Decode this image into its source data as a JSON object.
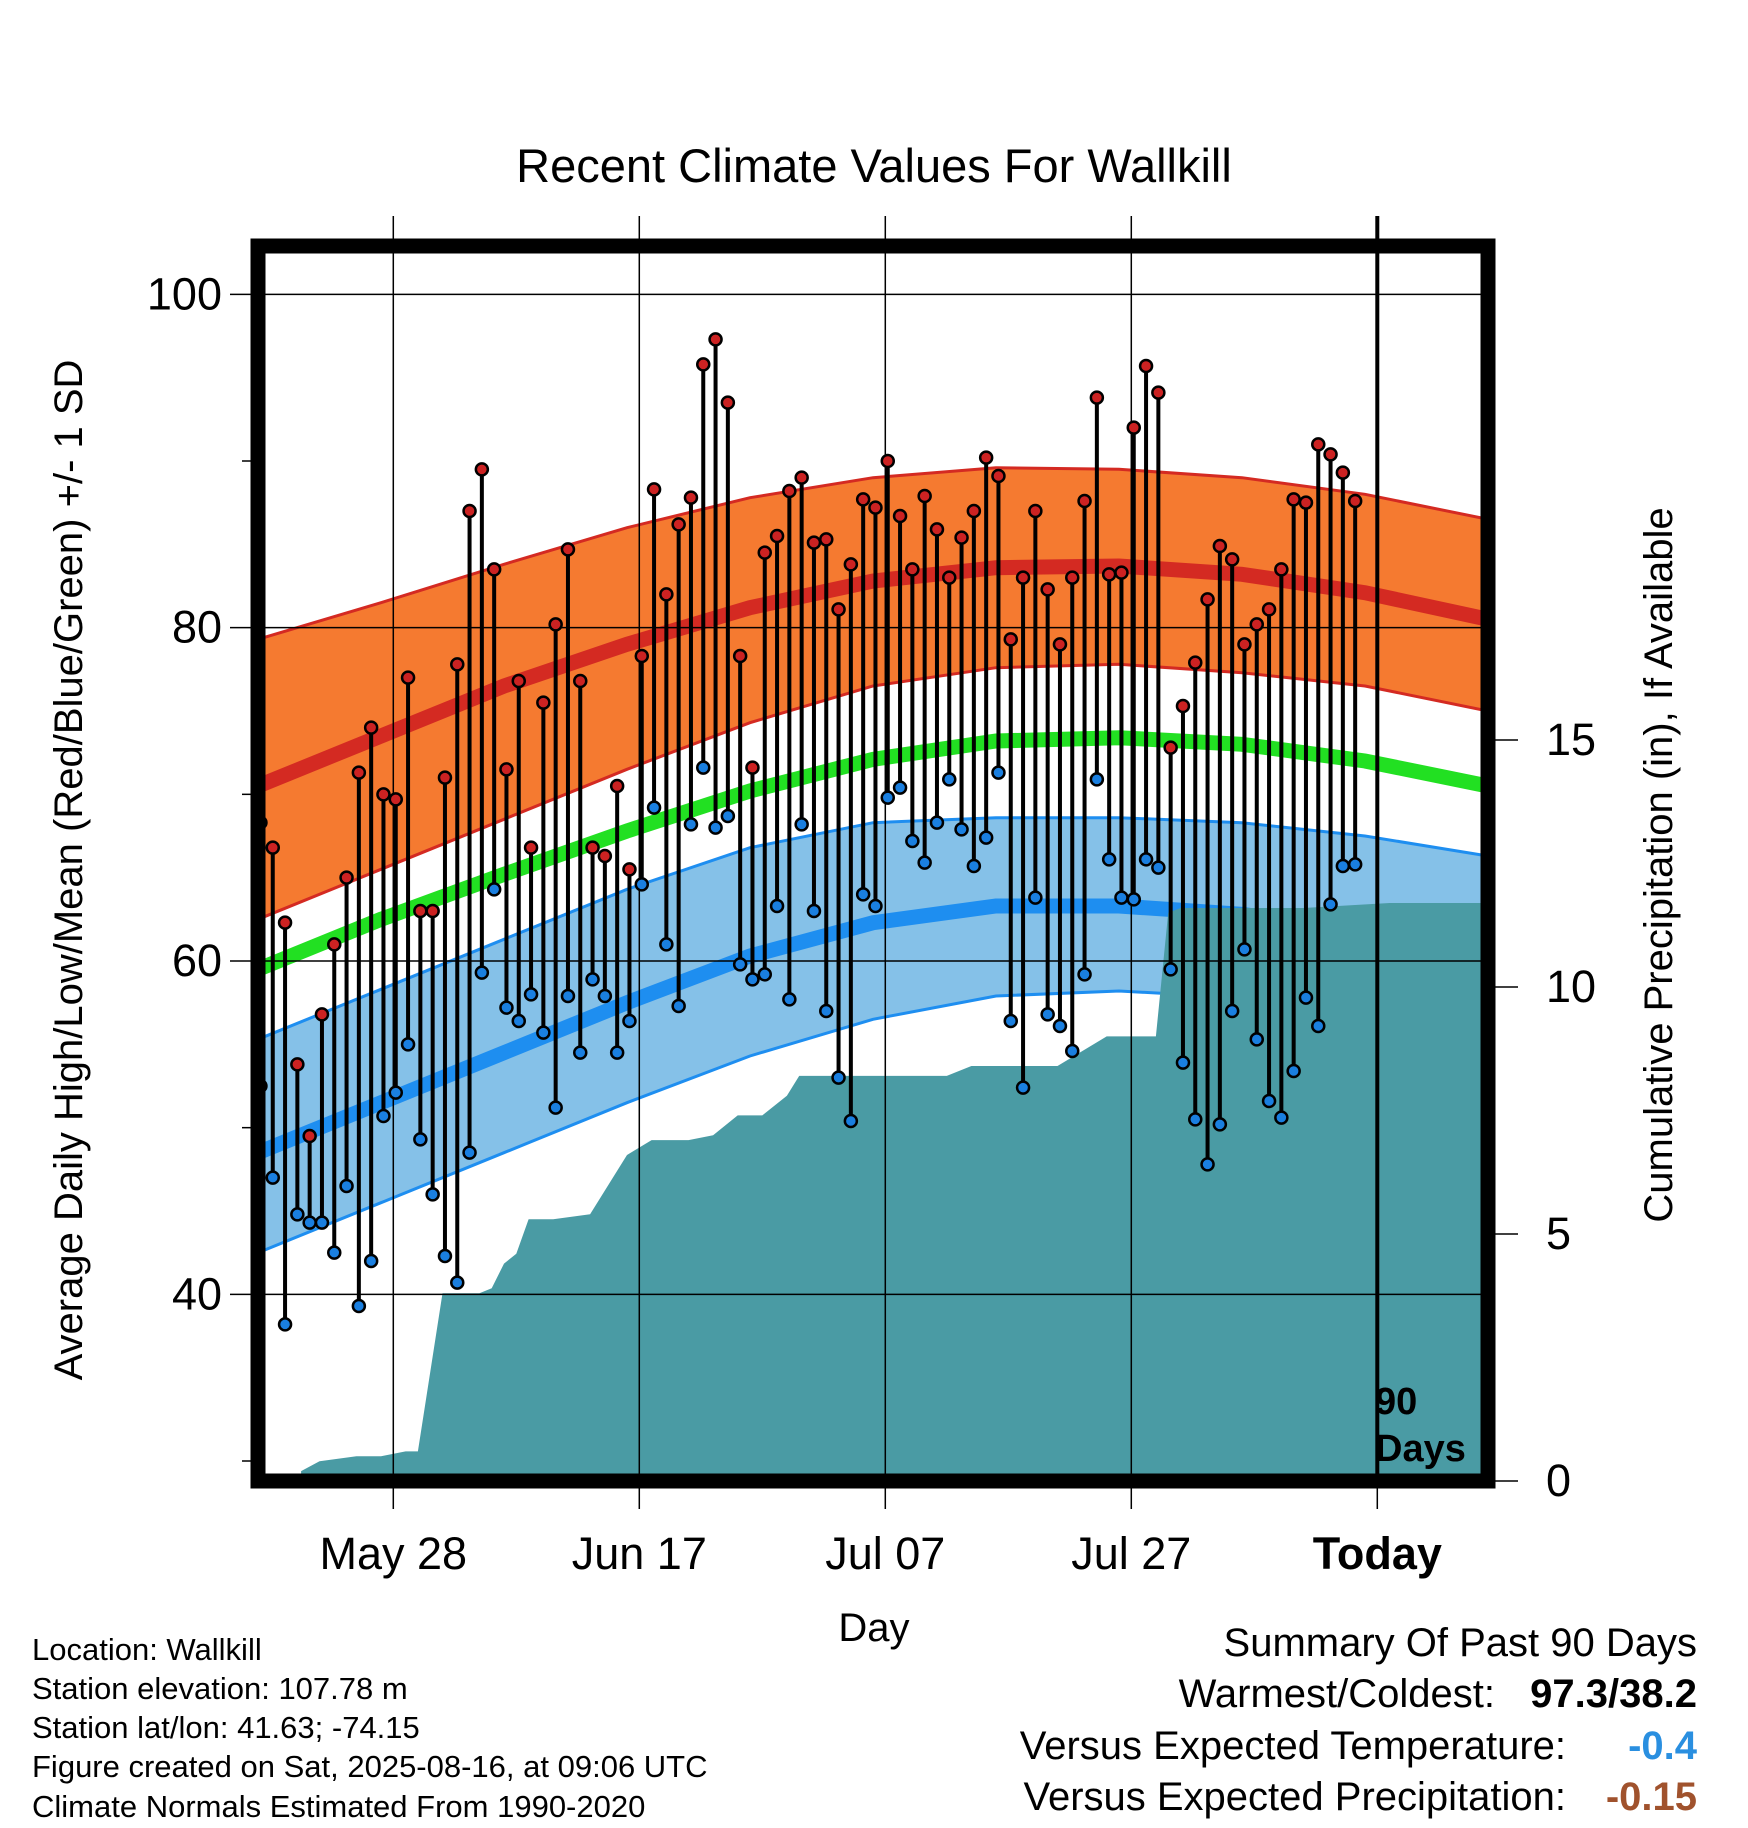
{
  "chart_data": {
    "type": "line",
    "title": "Recent Climate Values For Wallkill",
    "xlabel": "Day",
    "ylabel": "Average Daily High/Low/Mean (Red/Blue/Green) +/- 1 SD",
    "y2label": "Cumulative Precipitation (in), If Available",
    "x_ticks": [
      {
        "label": "May 28",
        "day": 11
      },
      {
        "label": "Jun 17",
        "day": 31
      },
      {
        "label": "Jul 07",
        "day": 51
      },
      {
        "label": "Jul 27",
        "day": 71
      },
      {
        "label": "Today",
        "day": 91
      }
    ],
    "xlim": [
      0,
      100
    ],
    "ylim": [
      28.8,
      102.9
    ],
    "y_ticks": [
      40,
      60,
      80,
      100
    ],
    "y2lim": [
      0,
      25
    ],
    "y2_ticks": [
      0,
      5,
      10,
      15
    ],
    "window_label": [
      "90",
      "Days"
    ],
    "grid": true,
    "normal_high": {
      "x": [
        0,
        10,
        20,
        30,
        40,
        50,
        60,
        70,
        80,
        90,
        100
      ],
      "mean": [
        70.5,
        73.5,
        76.5,
        79.0,
        81.2,
        82.8,
        83.6,
        83.7,
        83.2,
        82.1,
        80.5
      ],
      "upper": [
        79.3,
        81.5,
        83.8,
        86.0,
        87.8,
        89.0,
        89.6,
        89.5,
        89.0,
        88.0,
        86.5
      ],
      "lower": [
        62.5,
        65.5,
        68.5,
        71.5,
        74.3,
        76.5,
        77.6,
        77.8,
        77.3,
        76.5,
        75.0
      ]
    },
    "normal_mean": {
      "x": [
        0,
        10,
        20,
        30,
        40,
        50,
        60,
        70,
        80,
        90,
        100
      ],
      "values": [
        59.5,
        62.5,
        65.2,
        67.8,
        70.2,
        72.1,
        73.2,
        73.4,
        73.0,
        72.0,
        70.5
      ]
    },
    "normal_low": {
      "x": [
        0,
        10,
        20,
        30,
        40,
        50,
        60,
        70,
        80,
        90,
        100
      ],
      "mean": [
        48.5,
        51.5,
        54.5,
        57.5,
        60.3,
        62.3,
        63.3,
        63.3,
        62.8,
        61.8,
        60.2
      ],
      "upper": [
        55.3,
        58.3,
        61.3,
        64.3,
        66.8,
        68.3,
        68.6,
        68.6,
        68.3,
        67.5,
        66.3
      ],
      "lower": [
        42.5,
        45.5,
        48.5,
        51.5,
        54.3,
        56.5,
        57.9,
        58.2,
        57.8,
        56.8,
        54.8
      ]
    },
    "daily_x_start": 0.2,
    "daily_x_step": 1.0,
    "daily_high": [
      68.3,
      66.8,
      62.3,
      53.8,
      49.5,
      56.8,
      61.0,
      65.0,
      71.3,
      74.0,
      70.0,
      69.7,
      77.0,
      63.0,
      63.0,
      71.0,
      77.8,
      87.0,
      89.5,
      83.5,
      71.5,
      76.8,
      66.8,
      75.5,
      80.2,
      84.7,
      76.8,
      66.8,
      66.3,
      70.5,
      65.5,
      78.3,
      88.3,
      82.0,
      86.2,
      87.8,
      95.8,
      97.3,
      93.5,
      78.3,
      71.6,
      84.5,
      85.5,
      88.2,
      89.0,
      85.1,
      85.3,
      81.1,
      83.8,
      87.7,
      87.2,
      90.0,
      86.7,
      83.5,
      87.9,
      85.9,
      83.0,
      85.4,
      87.0,
      90.2,
      89.1,
      79.3,
      83.0,
      87.0,
      82.3,
      79.0,
      83.0,
      87.6,
      93.8,
      83.2,
      83.3,
      92.0,
      95.7,
      94.1,
      72.8,
      75.3,
      77.9,
      81.7,
      84.9,
      84.1,
      79.0,
      80.2,
      81.1,
      83.5,
      87.7,
      87.5,
      91.0,
      90.4,
      89.3,
      87.6
    ],
    "daily_low": [
      52.5,
      47.0,
      38.2,
      44.8,
      44.3,
      44.3,
      42.5,
      46.5,
      39.3,
      42.0,
      50.7,
      52.1,
      55.0,
      49.3,
      46.0,
      42.3,
      40.7,
      48.5,
      59.3,
      64.3,
      57.2,
      56.4,
      58.0,
      55.7,
      51.2,
      57.9,
      54.5,
      58.9,
      57.9,
      54.5,
      56.4,
      64.6,
      69.2,
      61.0,
      57.3,
      68.2,
      71.6,
      68.0,
      68.7,
      59.8,
      58.9,
      59.2,
      63.3,
      57.7,
      68.2,
      63.0,
      57.0,
      53.0,
      50.4,
      64.0,
      63.3,
      69.8,
      70.4,
      67.2,
      65.9,
      68.3,
      70.9,
      67.9,
      65.7,
      67.4,
      71.3,
      56.4,
      52.4,
      63.8,
      56.8,
      56.1,
      54.6,
      59.2,
      70.9,
      66.1,
      63.8,
      63.7,
      66.1,
      65.6,
      59.5,
      53.9,
      50.5,
      47.8,
      50.2,
      57.0,
      60.7,
      55.3,
      51.6,
      50.6,
      53.4,
      57.8,
      56.1,
      63.4,
      65.7,
      65.8
    ],
    "precip_cumulative": {
      "x": [
        3.5,
        5,
        8,
        10,
        12,
        13,
        15,
        18,
        19,
        20,
        21,
        22,
        23,
        24,
        27,
        30,
        32,
        35,
        37,
        39,
        41,
        43,
        44,
        46,
        50,
        53,
        56,
        58,
        60,
        62,
        65,
        69,
        71,
        73,
        74,
        75,
        80,
        85,
        92,
        100
      ],
      "values": [
        0.2,
        0.4,
        0.5,
        0.5,
        0.6,
        0.6,
        3.8,
        3.8,
        3.9,
        4.4,
        4.6,
        5.3,
        5.3,
        5.3,
        5.4,
        6.6,
        6.9,
        6.9,
        7.0,
        7.4,
        7.4,
        7.8,
        8.2,
        8.2,
        8.2,
        8.2,
        8.2,
        8.4,
        8.4,
        8.4,
        8.4,
        9.0,
        9.0,
        9.0,
        11.5,
        11.6,
        11.6,
        11.6,
        11.7,
        11.7
      ]
    }
  },
  "info": {
    "location": "Location: Wallkill",
    "elevation": "Station elevation: 107.78 m",
    "latlon": "Station lat/lon: 41.63; -74.15",
    "created": "Figure created on Sat, 2025-08-16, at 09:06 UTC",
    "normals": "Climate Normals Estimated From 1990-2020"
  },
  "summary": {
    "heading": "Summary Of Past 90 Days",
    "warmest_label": "Warmest/Coldest:",
    "warmest_value": "97.3/38.2",
    "temp_label": "Versus Expected Temperature:",
    "temp_value": "-0.4",
    "precip_label": "Versus Expected Precipitation:",
    "precip_value": "-0.15"
  },
  "colors": {
    "high_band": "#f57a30",
    "high_line": "#d42a22",
    "mean_line": "#22e022",
    "low_band": "#85c1e8",
    "low_line": "#1e8ef0",
    "precip": "#4a9ba4",
    "high_dot": "#cc2222",
    "low_dot": "#1a7fe0",
    "temp_value": "#2a8fe0",
    "precip_value": "#a0522d"
  }
}
